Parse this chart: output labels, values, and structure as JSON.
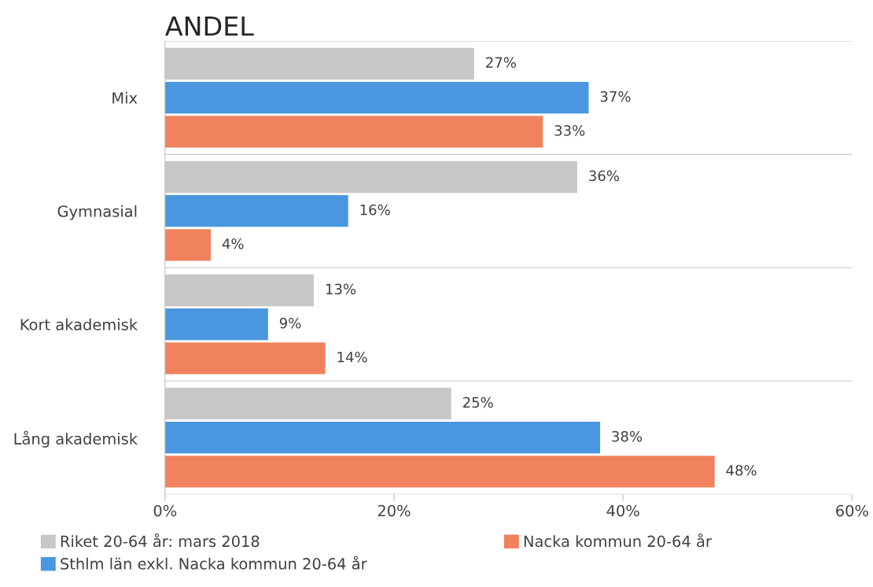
{
  "chart_data": {
    "type": "bar",
    "orientation": "horizontal",
    "title": "ANDEL",
    "categories": [
      "Mix",
      "Gymnasial",
      "Kort akademisk",
      "Lång akademisk"
    ],
    "series": [
      {
        "name": "Riket 20-64 år: mars 2018",
        "color": "#c8c8c8",
        "values": [
          27,
          36,
          13,
          25
        ],
        "value_labels": [
          "27%",
          "36%",
          "13%",
          "25%"
        ]
      },
      {
        "name": "Sthlm län exkl. Nacka kommun 20-64 år",
        "color": "#4a97e0",
        "values": [
          37,
          16,
          9,
          38
        ],
        "value_labels": [
          "37%",
          "16%",
          "9%",
          "38%"
        ]
      },
      {
        "name": "Nacka kommun 20-64 år",
        "color": "#f0825e",
        "values": [
          33,
          4,
          14,
          48
        ],
        "value_labels": [
          "33%",
          "4%",
          "14%",
          "48%"
        ]
      }
    ],
    "xlim": [
      0,
      60
    ],
    "xticks": [
      {
        "value": 0,
        "label": "0%"
      },
      {
        "value": 20,
        "label": "20%"
      },
      {
        "value": 40,
        "label": "40%"
      },
      {
        "value": 60,
        "label": "60%"
      }
    ],
    "grid": "y",
    "legend": "bottom"
  }
}
